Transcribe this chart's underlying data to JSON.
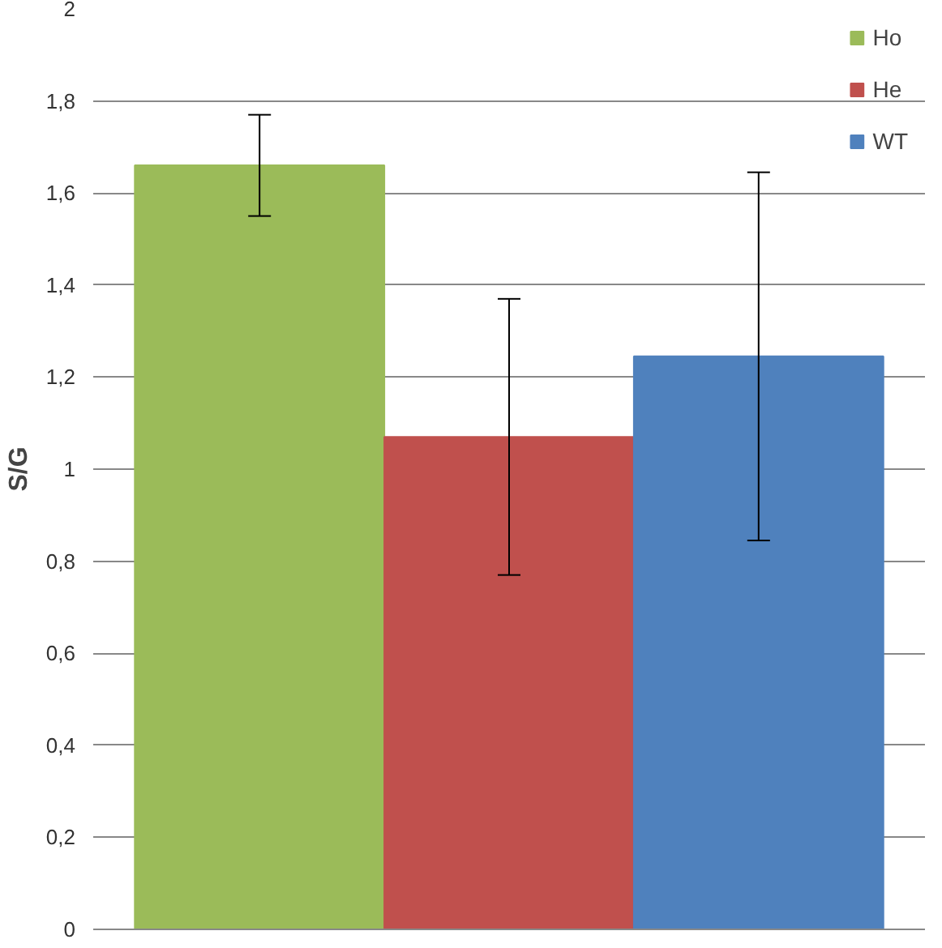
{
  "chart_data": {
    "type": "bar",
    "ylabel": "S/G",
    "categories": [
      null
    ],
    "series": [
      {
        "name": "Ho",
        "color": "#9bbb59",
        "values": [
          1.66
        ],
        "errors": [
          0.11
        ]
      },
      {
        "name": "He",
        "color": "#c0504d",
        "values": [
          1.07
        ],
        "errors": [
          0.3
        ]
      },
      {
        "name": "WT",
        "color": "#4f81bd",
        "values": [
          1.245
        ],
        "errors": [
          0.4
        ]
      }
    ],
    "ylim": [
      0,
      2
    ],
    "yticks": [
      0,
      {
        "value": 0.2,
        "label": "0,2"
      },
      {
        "value": 0.4,
        "label": "0,4"
      },
      {
        "value": 0.6,
        "label": "0,6"
      },
      {
        "value": 0.8,
        "label": "0,8"
      },
      1,
      {
        "value": 1.2,
        "label": "1,2"
      },
      {
        "value": 1.4,
        "label": "1,4"
      },
      {
        "value": 1.6,
        "label": "1,6"
      },
      {
        "value": 1.8,
        "label": "1,8"
      },
      2
    ],
    "grid": "y",
    "legend": "top right",
    "tick_labels": "y"
  }
}
